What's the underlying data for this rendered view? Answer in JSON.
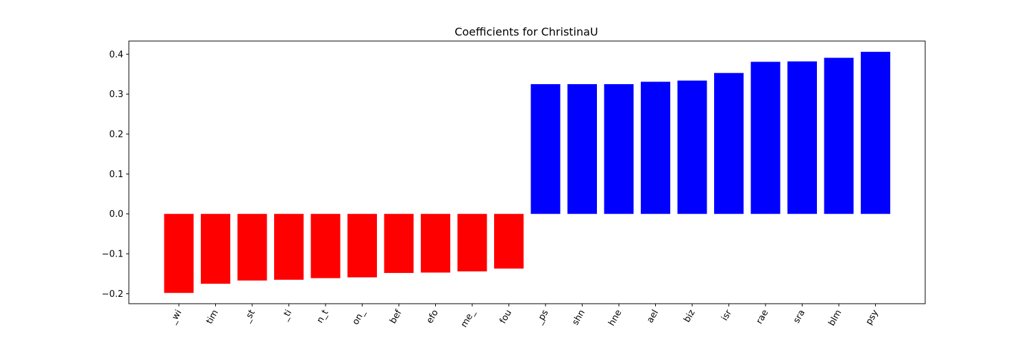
{
  "chart_data": {
    "type": "bar",
    "title": "Coefficients for ChristinaU",
    "xlabel": "",
    "ylabel": "",
    "categories": [
      "_wi",
      "tim",
      "_st",
      "_ti",
      "n_t",
      "on_",
      "bef",
      "efo",
      "me_",
      "fou",
      "_ps",
      "shn",
      "hne",
      "ael",
      "biz",
      "isr",
      "rae",
      "sra",
      "blm",
      "psy"
    ],
    "values": [
      -0.198,
      -0.175,
      -0.167,
      -0.165,
      -0.161,
      -0.159,
      -0.148,
      -0.147,
      -0.144,
      -0.137,
      0.325,
      0.325,
      0.325,
      0.331,
      0.334,
      0.353,
      0.381,
      0.382,
      0.391,
      0.406
    ],
    "ylim": [
      -0.225,
      0.433
    ],
    "yticks": [
      -0.2,
      -0.1,
      0.0,
      0.1,
      0.2,
      0.3,
      0.4
    ],
    "ytick_labels": [
      "−0.2",
      "−0.1",
      "0.0",
      "0.1",
      "0.2",
      "0.3",
      "0.4"
    ],
    "colors": {
      "negative": "#ff0000",
      "positive": "#0000ff"
    },
    "grid": false,
    "legend": "none"
  }
}
